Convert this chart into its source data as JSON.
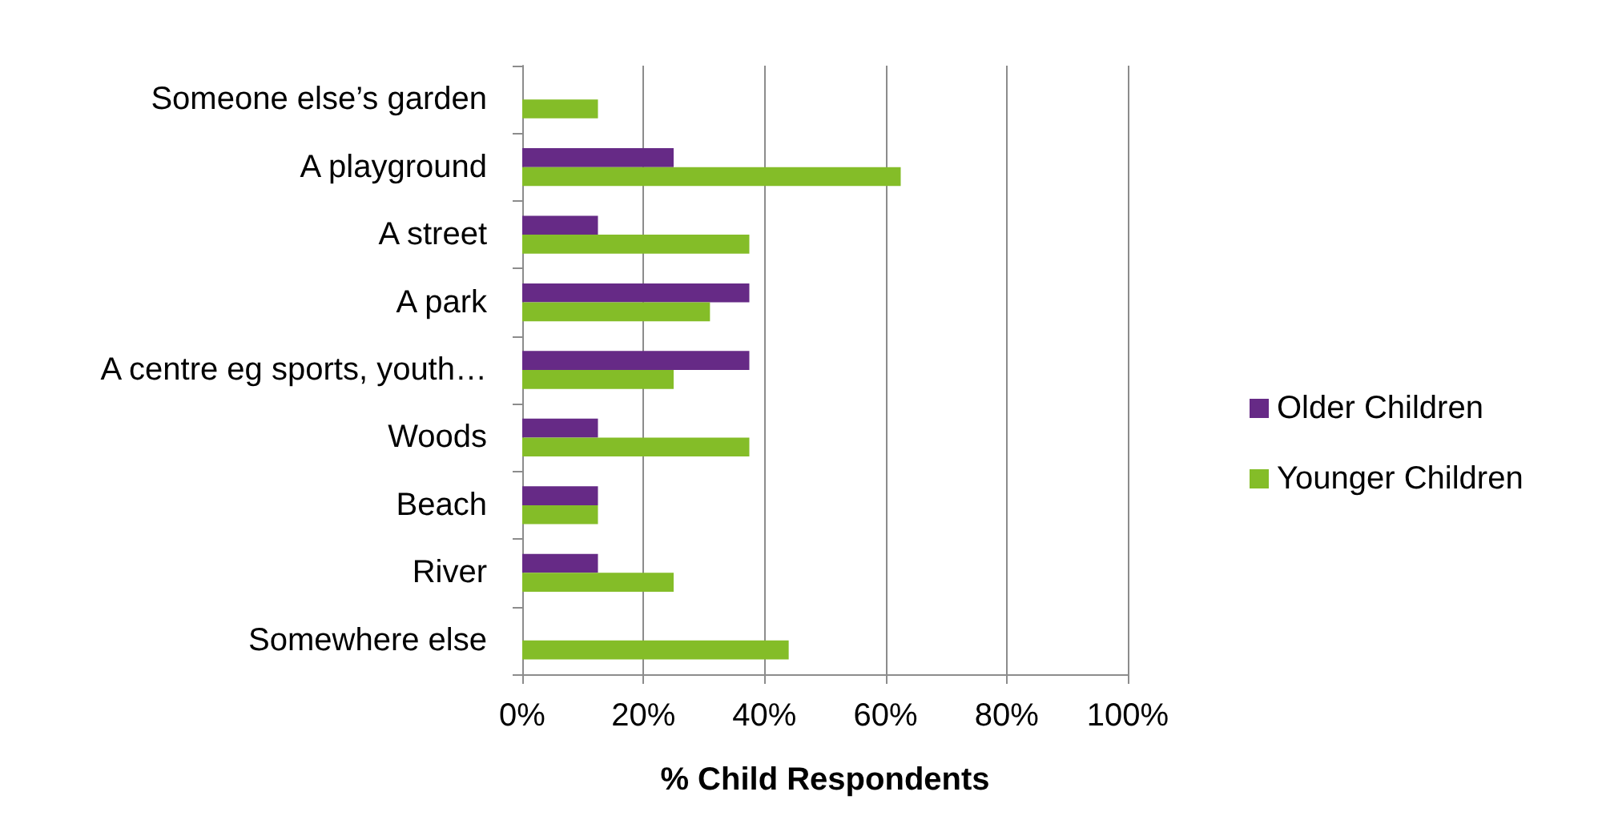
{
  "chart_data": {
    "type": "bar",
    "orientation": "horizontal",
    "xlabel": "% Child Respondents",
    "categories": [
      "Someone else’s garden",
      "A playground",
      "A street",
      "A park",
      "A centre eg sports, youth…",
      "Woods",
      "Beach",
      "River",
      "Somewhere else"
    ],
    "series": [
      {
        "name": "Older Children",
        "color": "#662a86",
        "values": [
          0,
          25,
          12.5,
          37.5,
          37.5,
          12.5,
          12.5,
          12.5,
          0
        ]
      },
      {
        "name": "Younger Children",
        "color": "#84bd28",
        "values": [
          12.5,
          62.5,
          37.5,
          31,
          25,
          37.5,
          12.5,
          25,
          44
        ]
      }
    ],
    "xlim": [
      0,
      100
    ],
    "xticks": [
      {
        "value": 0,
        "label": "0%"
      },
      {
        "value": 20,
        "label": "20%"
      },
      {
        "value": 40,
        "label": "40%"
      },
      {
        "value": 60,
        "label": "60%"
      },
      {
        "value": 80,
        "label": "80%"
      },
      {
        "value": 100,
        "label": "100%"
      }
    ],
    "grid": "x",
    "legend": "right"
  }
}
